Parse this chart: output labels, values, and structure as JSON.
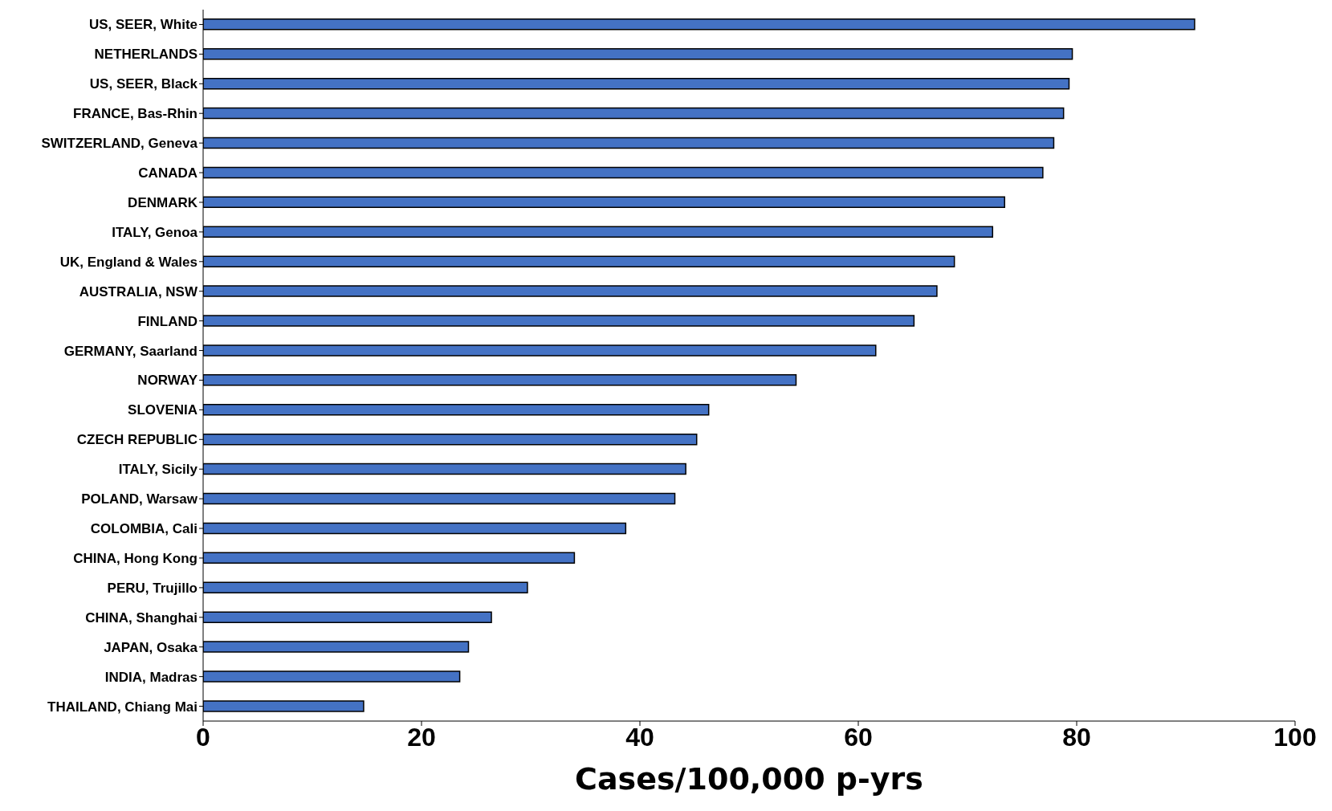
{
  "chart_data": {
    "type": "bar",
    "orientation": "horizontal",
    "xlabel": "Cases/100,000 p-yrs",
    "categories": [
      "US, SEER, White",
      "NETHERLANDS",
      "US, SEER, Black",
      "FRANCE, Bas-Rhin",
      "SWITZERLAND, Geneva",
      "CANADA",
      "DENMARK",
      "ITALY, Genoa",
      "UK, England & Wales",
      "AUSTRALIA, NSW",
      "FINLAND",
      "GERMANY, Saarland",
      "NORWAY",
      "SLOVENIA",
      "CZECH REPUBLIC",
      "ITALY, Sicily",
      "POLAND, Warsaw",
      "COLOMBIA, Cali",
      "CHINA, Hong Kong",
      "PERU, Trujillo",
      "CHINA, Shanghai",
      "JAPAN, Osaka",
      "INDIA, Madras",
      "THAILAND, Chiang Mai"
    ],
    "values": [
      90.8,
      79.6,
      79.3,
      78.8,
      77.9,
      76.9,
      73.4,
      72.3,
      68.8,
      67.2,
      65.1,
      61.6,
      54.3,
      46.3,
      45.2,
      44.2,
      43.2,
      38.7,
      34.0,
      29.7,
      26.4,
      24.3,
      23.5,
      14.7
    ],
    "color": "#4472c4",
    "xlim": [
      0,
      100
    ],
    "xticks": [
      0,
      20,
      40,
      60,
      80,
      100
    ],
    "grid": false,
    "legend": false
  }
}
